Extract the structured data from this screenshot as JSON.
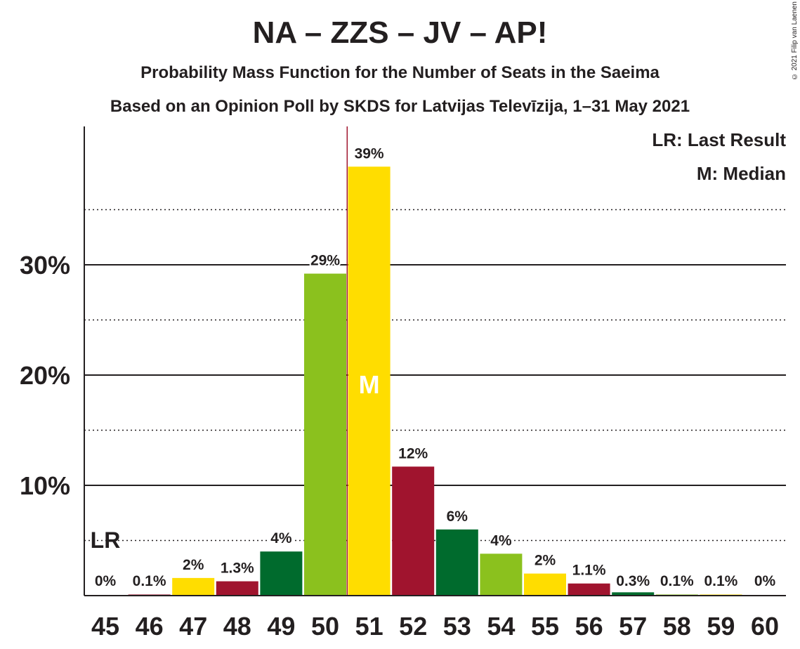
{
  "title": "NA – ZZS – JV – AP!",
  "subtitle1": "Probability Mass Function for the Number of Seats in the Saeima",
  "subtitle2": "Based on an Opinion Poll by SKDS for Latvijas Televīzija, 1–31 May 2021",
  "copyright": "© 2021 Filip van Laenen",
  "legend": {
    "lr": "LR: Last Result",
    "m": "M: Median"
  },
  "colors": {
    "yellow": "#FFDD00",
    "crimson": "#A0142E",
    "darkgreen": "#006B2D",
    "lightgreen": "#8BC11E",
    "median_line": "#A0142E",
    "text": "#231F20"
  },
  "chart_data": {
    "type": "bar",
    "categories": [
      "45",
      "46",
      "47",
      "48",
      "49",
      "50",
      "51",
      "52",
      "53",
      "54",
      "55",
      "56",
      "57",
      "58",
      "59",
      "60"
    ],
    "values": [
      0,
      0.1,
      1.6,
      1.3,
      4.0,
      29.2,
      38.9,
      11.7,
      6.0,
      3.8,
      2.0,
      1.1,
      0.3,
      0.1,
      0.1,
      0
    ],
    "labels": [
      "0%",
      "0.1%",
      "2%",
      "1.3%",
      "4%",
      "29%",
      "39%",
      "12%",
      "6%",
      "4%",
      "2%",
      "1.1%",
      "0.3%",
      "0.1%",
      "0.1%",
      "0%"
    ],
    "bar_colors": [
      "yellow",
      "crimson",
      "yellow",
      "crimson",
      "darkgreen",
      "lightgreen",
      "yellow",
      "crimson",
      "darkgreen",
      "lightgreen",
      "yellow",
      "crimson",
      "darkgreen",
      "lightgreen",
      "yellow",
      "crimson"
    ],
    "yticks": [
      10,
      20,
      30
    ],
    "ytick_labels": [
      "10%",
      "20%",
      "30%"
    ],
    "ylim": [
      0,
      42.5
    ],
    "dotted_gridlines": [
      5,
      15,
      25,
      35
    ],
    "last_result": "45",
    "last_result_label": "LR",
    "median": "51",
    "median_label": "M",
    "xlabel": "",
    "ylabel": ""
  }
}
